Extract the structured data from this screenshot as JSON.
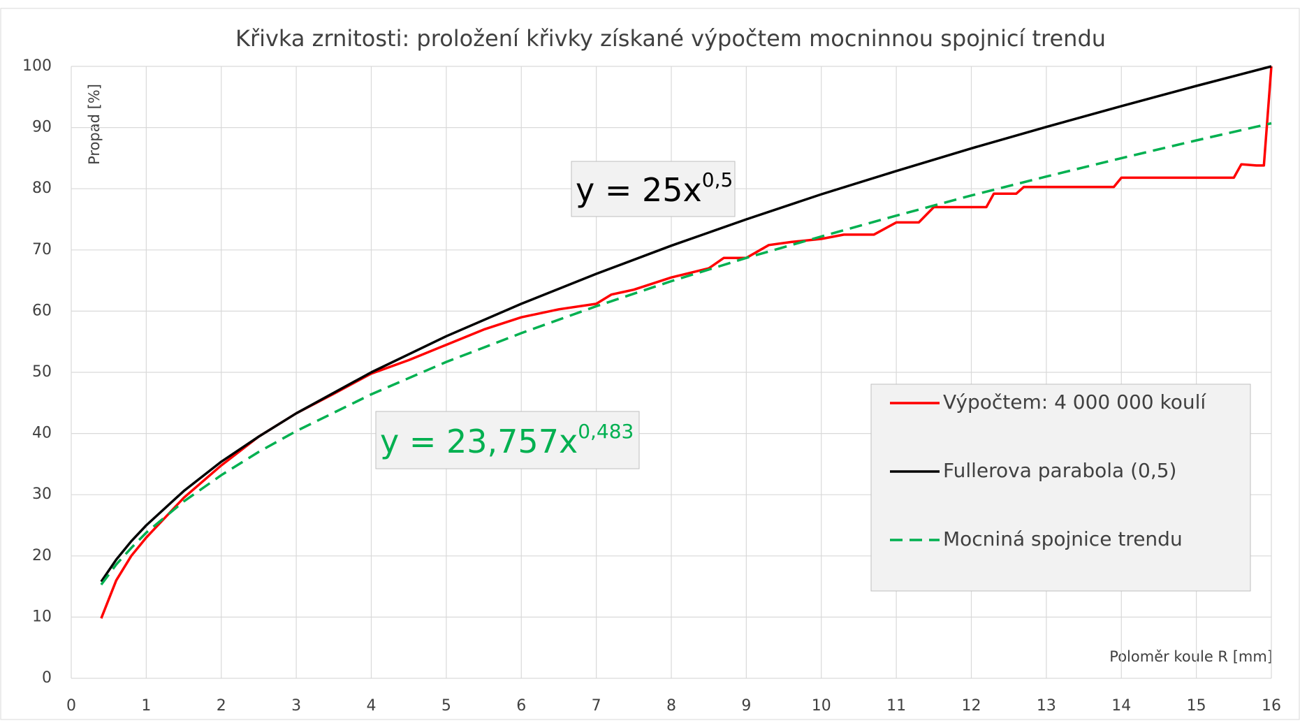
{
  "chart_data": {
    "type": "line",
    "title": "Křivka zrnitosti: proložení křivky získané výpočtem mocninnou spojnicí trendu",
    "y_label": "Propad [%]",
    "x_label": "Poloměr koule R [mm]",
    "xlim": [
      0,
      16
    ],
    "xticks": [
      0,
      1,
      2,
      3,
      4,
      5,
      6,
      7,
      8,
      9,
      10,
      11,
      12,
      13,
      14,
      15,
      16
    ],
    "ylim": [
      0,
      100
    ],
    "yticks": [
      0,
      10,
      20,
      30,
      40,
      50,
      60,
      70,
      80,
      90,
      100
    ],
    "grid": true,
    "legend": "right",
    "series": [
      {
        "name": "Výpočtem: 4 000 000 koulí",
        "color": "#ff0000",
        "dash": "solid",
        "x": [
          0.4,
          0.6,
          0.8,
          1,
          1.5,
          2,
          2.5,
          3,
          3.5,
          4,
          4.5,
          5,
          5.5,
          6,
          6.5,
          7,
          7.2,
          7.5,
          8,
          8.5,
          8.7,
          9,
          9.3,
          9.6,
          10,
          10.3,
          10.7,
          11,
          11.3,
          11.5,
          12,
          12.2,
          12.3,
          12.6,
          12.7,
          13.9,
          14,
          15.5,
          15.6,
          15.8,
          15.9,
          16
        ],
        "values": [
          9.8,
          16,
          20,
          23,
          29.5,
          34.8,
          39.5,
          43.3,
          46.5,
          49.8,
          52,
          54.5,
          57,
          59,
          60.3,
          61.2,
          62.7,
          63.5,
          65.5,
          67,
          68.7,
          68.7,
          70.8,
          71.3,
          71.8,
          72.5,
          72.5,
          74.5,
          74.5,
          77,
          77,
          77,
          79.2,
          79.2,
          80.3,
          80.3,
          81.8,
          81.8,
          84,
          83.8,
          83.8,
          100
        ]
      },
      {
        "name": "Fullerova parabola (0,5)",
        "color": "#000000",
        "dash": "solid",
        "x": [
          0.4,
          0.6,
          0.8,
          1,
          1.5,
          2,
          2.5,
          3,
          4,
          5,
          6,
          7,
          8,
          9,
          10,
          11,
          12,
          13,
          14,
          15,
          16
        ],
        "values": [
          15.8,
          19.4,
          22.4,
          25,
          30.6,
          35.4,
          39.5,
          43.3,
          50,
          55.9,
          61.2,
          66.1,
          70.7,
          75,
          79.1,
          82.9,
          86.6,
          90.1,
          93.5,
          96.8,
          100
        ]
      },
      {
        "name": "Mocniná spojnice trendu",
        "color": "#00b050",
        "dash": "dashed",
        "x": [
          0.4,
          0.6,
          0.8,
          1,
          1.5,
          2,
          2.5,
          3,
          4,
          5,
          6,
          7,
          8,
          9,
          10,
          11,
          12,
          13,
          14,
          15,
          16
        ],
        "values": [
          15.3,
          18.6,
          21.3,
          23.8,
          28.9,
          33.2,
          37,
          40.4,
          46.4,
          51.7,
          56.4,
          60.8,
          64.9,
          68.7,
          72.2,
          75.6,
          78.9,
          82,
          85,
          87.9,
          90.7
        ]
      }
    ],
    "annotations": [
      {
        "text": "y = 25x",
        "superscript": "0,5",
        "color": "#000000"
      },
      {
        "text": "y = 23,757x",
        "superscript": "0,483",
        "color": "#00b050"
      }
    ]
  }
}
